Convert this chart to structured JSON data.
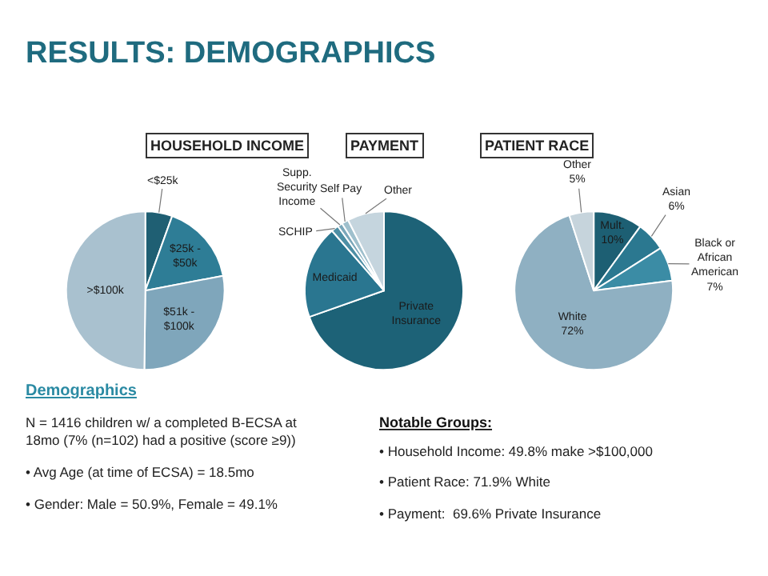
{
  "chart_data": [
    {
      "type": "other",
      "title": "RESULTS: DEMOGRAPHICS"
    },
    {
      "type": "pie",
      "title": "HOUSEHOLD INCOME",
      "categories": [
        "<$25k",
        "$25k - $50k",
        "$51k - $100k",
        ">$100k"
      ],
      "values": [
        5.5,
        16.5,
        28.2,
        49.8
      ],
      "colors": [
        "#1f5f73",
        "#2e7d96",
        "#7fa6bb",
        "#a9c1cf"
      ]
    },
    {
      "type": "pie",
      "title": "PAYMENT",
      "categories": [
        "Private Insurance",
        "Medicaid",
        "SCHIP",
        "Supp. Security Income",
        "Self Pay",
        "Other"
      ],
      "values": [
        69.6,
        19.0,
        1.5,
        1.0,
        1.4,
        7.5
      ],
      "colors": [
        "#1d6277",
        "#2a7690",
        "#4d8fa5",
        "#7aa7ba",
        "#9fc0cd",
        "#c5d5de"
      ]
    },
    {
      "type": "pie",
      "title": "PATIENT RACE",
      "categories": [
        "Mult.",
        "Asian",
        "Black or African American",
        "White",
        "Other"
      ],
      "values": [
        10,
        6,
        7,
        72,
        5
      ],
      "colors": [
        "#1d5f73",
        "#2b7890",
        "#3b8ca5",
        "#8fb0c2",
        "#c6d4dc"
      ],
      "value_labels": [
        "10%",
        "6%",
        "7%",
        "72%",
        "5%"
      ]
    },
    {
      "type": "other",
      "annotations": [
        "Demographics",
        "N = 1416 children w/ a completed B-ECSA at 18mo (7% (n=102) had a positive (score ≥9))",
        "• Avg Age (at time of ECSA) = 18.5mo",
        "• Gender: Male = 50.9%, Female = 49.1%",
        "Notable Groups:",
        "• Household Income: 49.8% make >$100,000",
        "• Patient Race: 71.9% White",
        "• Payment:  69.6% Private Insurance"
      ]
    }
  ]
}
